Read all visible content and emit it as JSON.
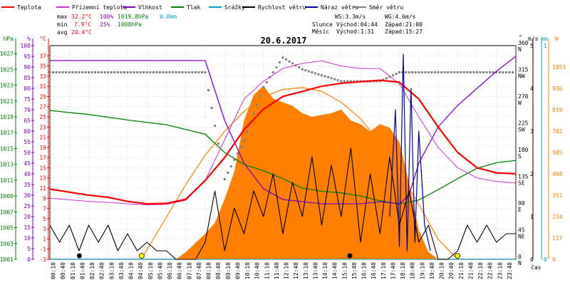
{
  "legend": [
    {
      "label": "Teplota",
      "color": "#ff0000"
    },
    {
      "label": "Přízemní teplota",
      "color": "#cc33cc"
    },
    {
      "label": "Vlhkost",
      "color": "#8000c0"
    },
    {
      "label": "Tlak",
      "color": "#008000"
    },
    {
      "label": "Srážky",
      "color": "#00a0c0"
    },
    {
      "label": "Rychlost větru",
      "color": "#000000"
    },
    {
      "label": "Náraz větru",
      "color": "#0000a0"
    },
    {
      "label": "Směr větru",
      "color": "#808080"
    }
  ],
  "stats": {
    "max_label": "max",
    "max_temp": "32.2°C",
    "max_hum": "100%",
    "max_press": "1019.8hPa",
    "max_rain": "0.0mm",
    "min_label": "min",
    "min_temp": "7.9°C",
    "min_hum": "25%",
    "min_press": "1008hPa",
    "avg_label": "avg",
    "avg_temp": "20.4°C",
    "ws": "WS:3.3m/s",
    "wg": "WG:4.6m/s",
    "sun_label": "Slunce",
    "sunrise": "Východ:04:44",
    "sunset": "Západ:21:00",
    "moon_label": "Měsíc",
    "moonrise": "Východ:1:31",
    "moonset": "Západ:15:27"
  },
  "colors": {
    "temp": "#ff0000",
    "ground": "#cc33cc",
    "hum": "#8000c0",
    "press": "#008000",
    "rain": "#00a0c0",
    "wind": "#000000",
    "gust": "#0000a0",
    "dir": "#808080",
    "solar_fill": "#ff8000",
    "solar_curve": "#ff8000"
  },
  "chart_data": {
    "type": "line",
    "title": "20.6.2017",
    "xlabel": "čas",
    "x_ticks": [
      "00:10",
      "00:40",
      "01:10",
      "01:40",
      "02:10",
      "02:40",
      "03:10",
      "03:40",
      "04:10",
      "04:40",
      "05:10",
      "05:40",
      "06:10",
      "06:40",
      "07:10",
      "07:40",
      "08:10",
      "08:40",
      "09:10",
      "09:40",
      "10:10",
      "10:40",
      "11:10",
      "11:40",
      "12:10",
      "12:40",
      "13:10",
      "13:40",
      "14:10",
      "14:40",
      "15:10",
      "15:40",
      "16:10",
      "16:40",
      "17:10",
      "17:40",
      "18:10",
      "18:40",
      "19:10",
      "19:40",
      "20:10",
      "20:40",
      "21:10",
      "21:40",
      "22:10",
      "22:40",
      "23:10",
      "23:40"
    ],
    "axes": {
      "press": {
        "label": "hPa",
        "ticks": [
          1001,
          1003,
          1005,
          1007,
          1009,
          1011,
          1013,
          1015,
          1017,
          1019,
          1021,
          1023,
          1025,
          1027
        ],
        "range": [
          1001,
          1028
        ]
      },
      "hum": {
        "label": "%",
        "ticks": [
          0,
          5,
          10,
          15,
          20,
          25,
          30,
          35,
          40,
          45,
          50,
          55,
          60,
          65,
          70,
          75,
          80,
          85,
          90,
          95,
          100
        ],
        "range": [
          0,
          100
        ]
      },
      "temp": {
        "label": "°C",
        "ticks": [
          -3,
          -1,
          1,
          3,
          5,
          7,
          9,
          11,
          13,
          15,
          17,
          19,
          21,
          23,
          25,
          27,
          29,
          31,
          33,
          35,
          37
        ],
        "range": [
          -3,
          39
        ]
      },
      "dir": {
        "label": "°",
        "ticks": [
          "0 N",
          "45 NE",
          "90 E",
          "135 SE",
          "180 S",
          "225 SW",
          "270 W",
          "315 NW",
          "360 N"
        ],
        "range": [
          0,
          360
        ]
      },
      "wind": {
        "label": "m/s",
        "ticks": [
          0,
          1,
          2,
          3,
          4,
          5
        ],
        "range": [
          0,
          5
        ]
      },
      "rain": {
        "label": "mm",
        "ticks": [
          0,
          1
        ],
        "range": [
          0,
          1
        ]
      },
      "solar": {
        "label": "W",
        "ticks": [
          0,
          117,
          234,
          351,
          468,
          585,
          702,
          819,
          936,
          1053
        ],
        "range": [
          0,
          1170
        ]
      }
    },
    "series": [
      {
        "name": "Teplota",
        "axis": "temp",
        "x": [
          0,
          1,
          2,
          3,
          4,
          5,
          6,
          7,
          8,
          9,
          10,
          11,
          12,
          13,
          14,
          15,
          16,
          17,
          18,
          19,
          20,
          21,
          22,
          23,
          24
        ],
        "y": [
          10.8,
          10.2,
          9.6,
          9.2,
          8.4,
          7.9,
          8.0,
          8.8,
          12.5,
          17.0,
          22.5,
          26.5,
          29.0,
          30.0,
          31.0,
          31.6,
          31.9,
          32.2,
          31.8,
          28.5,
          23.0,
          18.0,
          15.0,
          14.0,
          13.8
        ]
      },
      {
        "name": "Přízemní teplota",
        "axis": "temp",
        "x": [
          0,
          1,
          2,
          3,
          4,
          5,
          6,
          7,
          8,
          9,
          10,
          11,
          12,
          13,
          14,
          15,
          16,
          17,
          18,
          19,
          20,
          21,
          22,
          23,
          24
        ],
        "y": [
          9.0,
          8.7,
          8.4,
          8.2,
          7.9,
          7.7,
          7.8,
          8.6,
          12.5,
          20.5,
          28.5,
          32.0,
          34.5,
          35.5,
          36.0,
          35.0,
          34.5,
          34.5,
          31.5,
          25.0,
          19.0,
          15.0,
          13.0,
          12.3,
          12.0
        ]
      },
      {
        "name": "Vlhkost",
        "axis": "hum",
        "x": [
          0,
          2,
          4,
          6,
          7.5,
          8,
          9,
          10,
          11,
          12,
          13,
          14,
          15,
          16,
          17,
          18,
          18.5,
          19,
          20,
          21,
          22,
          23,
          24
        ],
        "y": [
          93,
          93,
          93,
          93,
          93,
          93,
          65,
          45,
          33,
          28,
          27,
          26,
          26,
          26,
          27,
          26,
          30,
          45,
          62,
          72,
          80,
          88,
          95
        ]
      },
      {
        "name": "Tlak",
        "axis": "press",
        "x": [
          0,
          2,
          4,
          6,
          8,
          9,
          10,
          11,
          12,
          13,
          14,
          15,
          16,
          17,
          18,
          19,
          20,
          21,
          22,
          23,
          24
        ],
        "y": [
          1019.8,
          1019.3,
          1018.6,
          1018.0,
          1016.8,
          1014.5,
          1013.0,
          1012.2,
          1011.2,
          1010.0,
          1009.6,
          1009.4,
          1009.0,
          1008.4,
          1008.0,
          1008.5,
          1009.8,
          1011.2,
          1012.5,
          1013.2,
          1013.5
        ]
      },
      {
        "name": "Srážky",
        "axis": "rain",
        "x": [
          0,
          24
        ],
        "y": [
          0.0,
          0.0
        ]
      },
      {
        "name": "Rychlost větru",
        "axis": "wind",
        "x": [
          0,
          0.5,
          1,
          1.5,
          2,
          2.5,
          3,
          3.5,
          4,
          4.5,
          5,
          5.5,
          6,
          6.5,
          7,
          7.5,
          8,
          8.5,
          9,
          9.5,
          10,
          10.5,
          11,
          11.5,
          12,
          12.5,
          13,
          13.5,
          14,
          14.5,
          15,
          15.5,
          16,
          16.5,
          17,
          17.5,
          18,
          18.5,
          19,
          19.5,
          20,
          20.5,
          21,
          21.5,
          22,
          22.5,
          23,
          23.5,
          24
        ],
        "y": [
          0.8,
          0.4,
          0.8,
          0.2,
          0.8,
          0.4,
          0.8,
          0.2,
          0.6,
          0.2,
          0.4,
          0.2,
          0.2,
          0.0,
          0.0,
          0.0,
          0.4,
          1.6,
          0.2,
          1.2,
          0.6,
          1.6,
          1.0,
          2.0,
          0.6,
          1.8,
          1.0,
          2.4,
          0.8,
          2.2,
          1.0,
          2.6,
          0.4,
          2.0,
          0.6,
          2.4,
          0.8,
          1.6,
          0.4,
          0.8,
          0.0,
          0.0,
          0.2,
          0.8,
          0.4,
          0.8,
          0.4,
          0.6,
          0.6
        ]
      },
      {
        "name": "Náraz větru",
        "axis": "wind",
        "x": [
          17.5,
          17.8,
          18.0,
          18.2,
          18.4,
          18.6,
          18.8,
          19.0,
          19.3,
          19.6
        ],
        "y": [
          1.0,
          3.5,
          0.3,
          4.8,
          0.2,
          4.0,
          0.4,
          3.0,
          0.8,
          0.2
        ]
      },
      {
        "name": "Směr větru",
        "axis": "dir",
        "x": [
          0,
          1,
          2,
          3,
          4,
          5,
          6,
          7,
          8,
          9,
          10,
          11,
          12,
          13,
          14,
          15,
          16,
          17,
          18,
          19,
          20,
          21,
          22,
          23,
          24
        ],
        "y": [
          315,
          315,
          315,
          315,
          315,
          315,
          315,
          315,
          315,
          135,
          200,
          290,
          340,
          320,
          310,
          300,
          300,
          300,
          315,
          315,
          315,
          315,
          315,
          315,
          315
        ]
      },
      {
        "name": "Solar",
        "axis": "solar",
        "style": "area",
        "x": [
          6.5,
          7,
          7.5,
          8,
          8.5,
          9,
          9.5,
          10,
          10.5,
          11,
          11.5,
          12,
          12.5,
          13,
          13.5,
          14,
          14.5,
          15,
          15.5,
          16,
          16.5,
          17,
          17.5,
          18,
          18.5,
          19,
          19.5,
          20
        ],
        "y": [
          0,
          40,
          90,
          140,
          200,
          330,
          480,
          760,
          900,
          950,
          880,
          860,
          840,
          800,
          780,
          790,
          800,
          820,
          760,
          740,
          700,
          740,
          720,
          640,
          420,
          160,
          40,
          0
        ]
      },
      {
        "name": "Solar max",
        "axis": "solar",
        "style": "curve",
        "x": [
          4.7,
          6,
          7,
          8,
          9,
          10,
          11,
          12,
          13,
          14,
          15,
          16,
          17,
          18,
          19,
          20,
          21
        ],
        "y": [
          0,
          230,
          410,
          570,
          700,
          810,
          890,
          930,
          940,
          920,
          860,
          770,
          640,
          480,
          300,
          110,
          0
        ]
      }
    ],
    "markers": {
      "sun": [
        {
          "x": 4.73
        },
        {
          "x": 21.0
        }
      ],
      "moon": [
        {
          "x": 1.52
        },
        {
          "x": 15.45
        }
      ]
    }
  }
}
